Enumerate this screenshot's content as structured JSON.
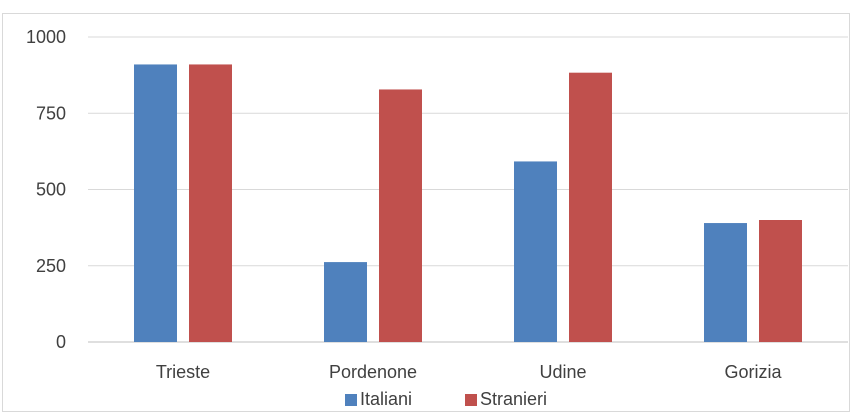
{
  "chart_data": {
    "type": "bar",
    "categories": [
      "Trieste",
      "Pordenone",
      "Udine",
      "Gorizia"
    ],
    "series": [
      {
        "name": "Italiani",
        "color": "#4f81bd",
        "values": [
          910,
          262,
          592,
          390
        ]
      },
      {
        "name": "Stranieri",
        "color": "#c0504d",
        "values": [
          910,
          828,
          883,
          400
        ]
      }
    ],
    "yticks": [
      0,
      250,
      500,
      750,
      1000
    ],
    "ylim": [
      0,
      1000
    ],
    "grid": true,
    "legend_position": "bottom",
    "title": "",
    "xlabel": "",
    "ylabel": ""
  }
}
